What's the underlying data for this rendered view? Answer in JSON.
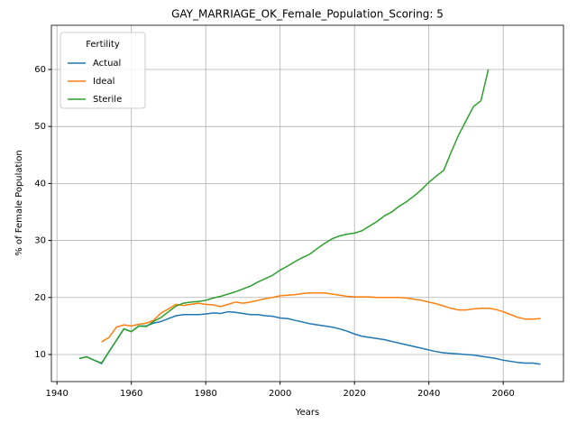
{
  "chart_data": {
    "type": "line",
    "title": "GAY_MARRIAGE_OK_Female_Population_Scoring: 5",
    "xlabel": "Years",
    "ylabel": "% of Female Population",
    "legend_title": "Fertility",
    "legend": "upper left",
    "grid": true,
    "xlim": [
      1938.5,
      2076.2
    ],
    "xticks": [
      1940,
      1960,
      1980,
      2000,
      2020,
      2040,
      2060
    ],
    "ylim": [
      5.25,
      67.75
    ],
    "yticks": [
      10,
      20,
      30,
      40,
      50,
      60
    ],
    "x": [
      1946,
      1948,
      1950,
      1952,
      1954,
      1956,
      1958,
      1960,
      1962,
      1964,
      1966,
      1968,
      1970,
      1972,
      1974,
      1976,
      1978,
      1980,
      1982,
      1984,
      1986,
      1988,
      1990,
      1992,
      1994,
      1996,
      1998,
      2000,
      2002,
      2004,
      2006,
      2008,
      2010,
      2012,
      2014,
      2016,
      2018,
      2020,
      2022,
      2024,
      2026,
      2028,
      2030,
      2032,
      2034,
      2036,
      2038,
      2040,
      2042,
      2044,
      2046,
      2048,
      2050,
      2052,
      2054,
      2056,
      2058,
      2060,
      2062,
      2064,
      2066,
      2068,
      2070
    ],
    "series": [
      {
        "name": "Actual",
        "color": "#1f77b4",
        "values": [
          9.3,
          9.6,
          9.0,
          8.4,
          10.5,
          12.5,
          14.5,
          14.0,
          15.0,
          15.0,
          15.5,
          15.8,
          16.3,
          16.8,
          17.0,
          17.0,
          17.0,
          17.1,
          17.3,
          17.2,
          17.5,
          17.4,
          17.2,
          17.0,
          17.0,
          16.8,
          16.7,
          16.4,
          16.3,
          16.0,
          15.7,
          15.4,
          15.2,
          15.0,
          14.8,
          14.5,
          14.1,
          13.6,
          13.2,
          13.0,
          12.8,
          12.6,
          12.3,
          12.0,
          11.7,
          11.4,
          11.1,
          10.8,
          10.5,
          10.3,
          10.2,
          10.1,
          10.0,
          9.9,
          9.7,
          9.5,
          9.3,
          9.0,
          8.8,
          8.6,
          8.5,
          8.5,
          8.3
        ]
      },
      {
        "name": "Ideal",
        "color": "#ff7f0e",
        "values": [
          null,
          null,
          null,
          12.2,
          13.0,
          14.8,
          15.2,
          15.0,
          15.3,
          15.5,
          16.0,
          17.3,
          18.0,
          18.8,
          18.6,
          18.8,
          19.0,
          18.8,
          18.7,
          18.4,
          18.8,
          19.2,
          19.0,
          19.2,
          19.5,
          19.8,
          20.0,
          20.3,
          20.4,
          20.5,
          20.7,
          20.8,
          20.8,
          20.8,
          20.6,
          20.4,
          20.2,
          20.1,
          20.1,
          20.1,
          20.0,
          20.0,
          20.0,
          20.0,
          19.9,
          19.7,
          19.5,
          19.2,
          18.9,
          18.5,
          18.1,
          17.8,
          17.8,
          18.0,
          18.1,
          18.1,
          17.9,
          17.5,
          17.0,
          16.5,
          16.2,
          16.2,
          16.3
        ]
      },
      {
        "name": "Sterile",
        "color": "#2ca02c",
        "values": [
          9.3,
          9.6,
          9.0,
          8.5,
          10.5,
          12.5,
          14.5,
          14.0,
          15.0,
          14.9,
          15.8,
          16.5,
          17.5,
          18.5,
          19.0,
          19.2,
          19.3,
          19.5,
          19.9,
          20.2,
          20.6,
          21.0,
          21.5,
          22.0,
          22.7,
          23.3,
          23.9,
          24.8,
          25.5,
          26.3,
          27.0,
          27.6,
          28.6,
          29.5,
          30.3,
          30.8,
          31.1,
          31.3,
          31.7,
          32.5,
          33.3,
          34.3,
          35.0,
          36.0,
          36.8,
          37.8,
          38.9,
          40.2,
          41.3,
          42.3,
          45.5,
          48.5,
          51.0,
          53.5,
          54.5,
          60.0,
          null,
          null,
          null,
          null,
          null,
          null,
          null
        ]
      }
    ]
  }
}
